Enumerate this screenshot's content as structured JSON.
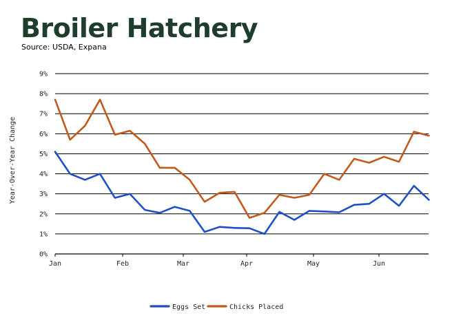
{
  "header": {
    "title": "Broiler Hatchery",
    "subtitle": "Source: USDA, Expana"
  },
  "chart_data": {
    "type": "line",
    "title": "Broiler Hatchery",
    "subtitle": "Source: USDA, Expana",
    "xlabel": "",
    "ylabel": "Year-Over-Year Change",
    "ylim": [
      0,
      9
    ],
    "y_ticks": [
      0,
      1,
      2,
      3,
      4,
      5,
      6,
      7,
      8,
      9
    ],
    "y_tick_labels": [
      "0%",
      "1%",
      "2%",
      "3%",
      "4%",
      "5%",
      "6%",
      "7%",
      "8%",
      "9%"
    ],
    "x_tick_labels": [
      "Jan",
      "Feb",
      "Mar",
      "Apr",
      "May",
      "Jun"
    ],
    "grid": "horizontal",
    "legend_position": "bottom-center",
    "series": [
      {
        "name": "Eggs Set",
        "color": "#1f4fc4",
        "values": [
          5.1,
          4.0,
          3.7,
          4.0,
          2.8,
          3.0,
          2.2,
          2.05,
          2.35,
          2.15,
          1.1,
          1.35,
          1.3,
          1.28,
          1.0,
          2.1,
          1.7,
          2.15,
          2.12,
          2.08,
          2.45,
          2.5,
          3.0,
          2.4,
          3.4,
          2.7
        ]
      },
      {
        "name": "Chicks Placed",
        "color": "#c4581a",
        "values": [
          7.7,
          5.7,
          6.4,
          7.7,
          5.95,
          6.15,
          5.5,
          4.3,
          4.3,
          3.7,
          2.6,
          3.05,
          3.1,
          1.8,
          2.05,
          2.95,
          2.8,
          2.95,
          4.0,
          3.7,
          4.75,
          4.55,
          4.85,
          4.6,
          6.1,
          5.9
        ]
      }
    ]
  }
}
